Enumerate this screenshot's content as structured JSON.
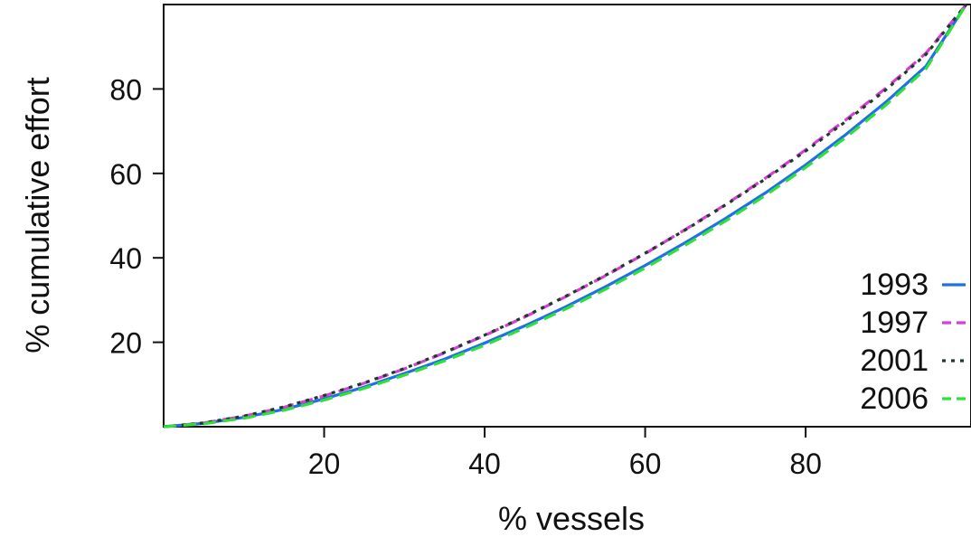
{
  "chart_data": {
    "type": "line",
    "xlabel": "% vessels",
    "ylabel": "% cumulative effort",
    "xlim": [
      0,
      100
    ],
    "ylim": [
      0,
      100
    ],
    "x_ticks": [
      20,
      40,
      60,
      80
    ],
    "y_ticks": [
      20,
      40,
      60,
      80
    ],
    "legend_position": "bottom-right",
    "grid": false,
    "series": [
      {
        "name": "1993",
        "color": "#1f6fe8",
        "dash": "solid",
        "x": [
          0,
          5,
          10,
          15,
          20,
          25,
          30,
          35,
          40,
          45,
          50,
          55,
          60,
          65,
          70,
          75,
          80,
          85,
          90,
          95,
          100
        ],
        "y": [
          0,
          0.8,
          2.2,
          4.1,
          6.6,
          9.4,
          12.6,
          16.0,
          19.8,
          23.9,
          28.3,
          33.1,
          38.2,
          43.6,
          49.3,
          55.4,
          62.0,
          69.2,
          76.9,
          85.4,
          100
        ]
      },
      {
        "name": "1997",
        "color": "#d63fd6",
        "dash": "dashed",
        "x": [
          0,
          5,
          10,
          15,
          20,
          25,
          30,
          35,
          40,
          45,
          50,
          55,
          60,
          65,
          70,
          75,
          80,
          85,
          90,
          95,
          100
        ],
        "y": [
          0,
          0.9,
          2.5,
          4.6,
          7.3,
          10.3,
          13.7,
          17.5,
          21.6,
          26.0,
          30.7,
          35.7,
          41.0,
          46.7,
          52.6,
          58.9,
          65.6,
          72.7,
          80.2,
          88.5,
          100
        ]
      },
      {
        "name": "2001",
        "color": "#1e3a2a",
        "dash": "dotted",
        "x": [
          0,
          5,
          10,
          15,
          20,
          25,
          30,
          35,
          40,
          45,
          50,
          55,
          60,
          65,
          70,
          75,
          80,
          85,
          90,
          95,
          100
        ],
        "y": [
          0,
          0.9,
          2.5,
          4.7,
          7.4,
          10.4,
          13.8,
          17.6,
          21.7,
          26.1,
          30.8,
          35.8,
          41.1,
          46.6,
          52.5,
          58.7,
          65.3,
          72.3,
          79.8,
          88.2,
          100
        ]
      },
      {
        "name": "2006",
        "color": "#2fe03a",
        "dash": "dashed",
        "x": [
          0,
          5,
          10,
          15,
          20,
          25,
          30,
          35,
          40,
          45,
          50,
          55,
          60,
          65,
          70,
          75,
          80,
          85,
          90,
          95,
          100
        ],
        "y": [
          0,
          0.7,
          2.0,
          3.9,
          6.3,
          9.1,
          12.2,
          15.6,
          19.3,
          23.4,
          27.8,
          32.5,
          37.6,
          43.0,
          48.7,
          54.8,
          61.4,
          68.5,
          76.2,
          84.8,
          100
        ]
      }
    ]
  }
}
